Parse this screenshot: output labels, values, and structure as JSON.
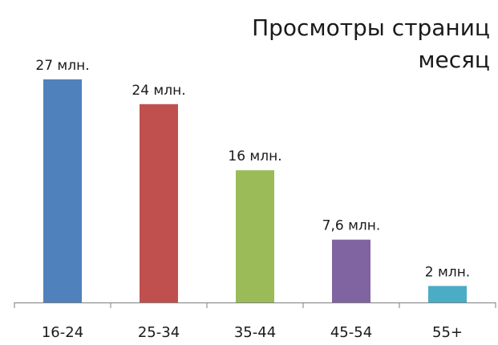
{
  "chart_data": {
    "type": "bar",
    "title_lines": [
      "Просмотры страниц",
      "месяц"
    ],
    "categories": [
      "16-24",
      "25-34",
      "35-44",
      "45-54",
      "55+"
    ],
    "values": [
      27,
      24,
      16,
      7.6,
      2
    ],
    "data_labels": [
      "27 млн.",
      "24 млн.",
      "16 млн.",
      "7,6 млн.",
      "2 млн."
    ],
    "colors": [
      "#4f81bd",
      "#c0504d",
      "#9bbb59",
      "#8064a2",
      "#4bacc6"
    ],
    "ylim": [
      0,
      30
    ],
    "grid": false,
    "legend": "none"
  }
}
